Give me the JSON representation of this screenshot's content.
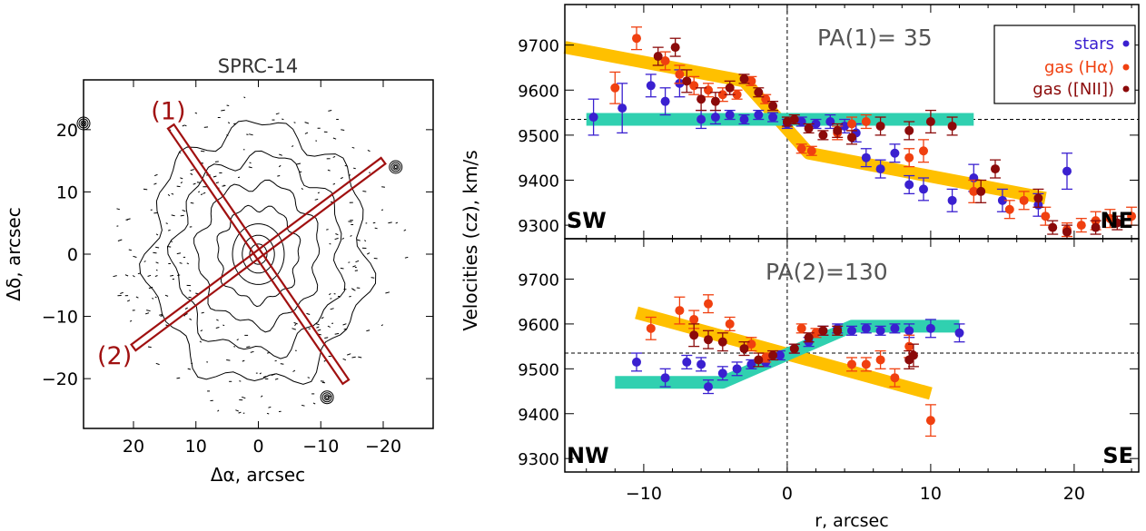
{
  "chart_data": [
    {
      "type": "contour_map",
      "title": "SPRC-14",
      "xlabel": "Δα, arcsec",
      "ylabel": "Δδ, arcsec",
      "xlim": [
        28,
        -28
      ],
      "ylim": [
        -28,
        28
      ],
      "xticks": [
        20,
        10,
        0,
        -10,
        -20
      ],
      "yticks": [
        20,
        10,
        0,
        -10,
        -20
      ],
      "tick_labels_x": [
        "20",
        "10",
        "0",
        "−10",
        "−20"
      ],
      "tick_labels_y": [
        "20",
        "10",
        "0",
        "−10",
        "−20"
      ],
      "slits": [
        {
          "label": "(1)",
          "pa": 35,
          "from": [
            14,
            20.5
          ],
          "to": [
            -14,
            -20.5
          ]
        },
        {
          "label": "(2)",
          "pa": 130,
          "from": [
            20,
            -15
          ],
          "to": [
            -20,
            15
          ]
        }
      ],
      "contour_center": [
        0,
        0
      ],
      "contour_radii": [
        1.5,
        2.8,
        4.5,
        7,
        10.5,
        14.5,
        19
      ],
      "field_sources": [
        [
          28,
          21
        ],
        [
          -22,
          14
        ],
        [
          -11,
          -23
        ]
      ],
      "colors": {
        "slit": "#a01010",
        "contour": "#000000"
      }
    },
    {
      "type": "scatter",
      "panel_label": "PA(1)= 35",
      "xlabel": "r, arcsec",
      "ylabel": "Velocities (cz),  km/s",
      "xlim": [
        -15.5,
        24.5
      ],
      "ylim": [
        9270,
        9790
      ],
      "yticks": [
        9300,
        9400,
        9500,
        9600,
        9700
      ],
      "xticks": [
        -10,
        0,
        10,
        20
      ],
      "tick_labels_y": [
        "9300",
        "9400",
        "9500",
        "9600",
        "9700"
      ],
      "tick_labels_x": [
        "−10",
        "0",
        "10",
        "20"
      ],
      "systemic_velocity": 9535,
      "corner_left": "SW",
      "corner_right": "NE",
      "legend": [
        {
          "label": "stars",
          "color": "#3a20d0"
        },
        {
          "label": "gas (Hα)",
          "color": "#f04010"
        },
        {
          "label": "gas ([NII])",
          "color": "#8b0a0a"
        }
      ],
      "models": [
        {
          "color": "#ffc000",
          "points": [
            [
              -15.5,
              9695
            ],
            [
              -3,
              9620
            ],
            [
              1.5,
              9460
            ],
            [
              18,
              9360
            ]
          ]
        },
        {
          "color": "#30d0b0",
          "points": [
            [
              -14,
              9535
            ],
            [
              13,
              9535
            ]
          ]
        }
      ],
      "series": [
        {
          "name": "stars",
          "color": "#3a20d0",
          "points": [
            [
              -13.5,
              9540,
              40
            ],
            [
              -11.5,
              9560,
              55
            ],
            [
              -9.5,
              9610,
              25
            ],
            [
              -8.5,
              9575,
              30
            ],
            [
              -7.5,
              9615,
              30
            ],
            [
              -6,
              9535,
              20
            ],
            [
              -5,
              9540,
              15
            ],
            [
              -4,
              9545,
              10
            ],
            [
              -3,
              9535,
              10
            ],
            [
              -2,
              9545,
              10
            ],
            [
              -1,
              9540,
              10
            ],
            [
              0,
              9525,
              10
            ],
            [
              1,
              9530,
              10
            ],
            [
              2,
              9525,
              10
            ],
            [
              3,
              9530,
              15
            ],
            [
              4,
              9520,
              15
            ],
            [
              4.8,
              9505,
              20
            ],
            [
              5.5,
              9450,
              20
            ],
            [
              6.5,
              9425,
              20
            ],
            [
              7.5,
              9460,
              20
            ],
            [
              8.5,
              9390,
              20
            ],
            [
              9.5,
              9380,
              25
            ],
            [
              11.5,
              9355,
              25
            ],
            [
              13,
              9405,
              30
            ],
            [
              15,
              9355,
              25
            ],
            [
              17.5,
              9345,
              25
            ],
            [
              19.5,
              9420,
              40
            ]
          ]
        },
        {
          "name": "gas (Hα)",
          "color": "#f04010",
          "points": [
            [
              -12,
              9605,
              35
            ],
            [
              -10.5,
              9715,
              25
            ],
            [
              -8.5,
              9665,
              20
            ],
            [
              -7.5,
              9635,
              20
            ],
            [
              -6.5,
              9610,
              20
            ],
            [
              -5.5,
              9600,
              15
            ],
            [
              -4.5,
              9590,
              15
            ],
            [
              -3.5,
              9590,
              10
            ],
            [
              -2.5,
              9620,
              10
            ],
            [
              -1.5,
              9580,
              10
            ],
            [
              1,
              9470,
              10
            ],
            [
              1.7,
              9465,
              10
            ],
            [
              3.5,
              9505,
              15
            ],
            [
              4.5,
              9525,
              15
            ],
            [
              5.5,
              9530,
              15
            ],
            [
              8.5,
              9450,
              20
            ],
            [
              9.5,
              9465,
              25
            ],
            [
              13,
              9375,
              25
            ],
            [
              15.5,
              9335,
              20
            ],
            [
              16.5,
              9355,
              20
            ],
            [
              18,
              9320,
              20
            ],
            [
              19.5,
              9290,
              15
            ],
            [
              20.5,
              9300,
              15
            ],
            [
              21.5,
              9310,
              20
            ],
            [
              22.5,
              9315,
              20
            ],
            [
              24,
              9320,
              20
            ]
          ]
        },
        {
          "name": "gas ([NII])",
          "color": "#8b0a0a",
          "points": [
            [
              -9,
              9675,
              20
            ],
            [
              -7.8,
              9695,
              20
            ],
            [
              -7,
              9620,
              25
            ],
            [
              -6,
              9580,
              25
            ],
            [
              -5,
              9575,
              20
            ],
            [
              -4,
              9605,
              15
            ],
            [
              -3,
              9625,
              10
            ],
            [
              -2,
              9595,
              10
            ],
            [
              -1,
              9565,
              10
            ],
            [
              0,
              9530,
              10
            ],
            [
              0.5,
              9535,
              10
            ],
            [
              1.5,
              9515,
              10
            ],
            [
              2.5,
              9500,
              10
            ],
            [
              3.5,
              9510,
              15
            ],
            [
              4.5,
              9495,
              15
            ],
            [
              6.5,
              9520,
              20
            ],
            [
              8.5,
              9510,
              20
            ],
            [
              10,
              9530,
              25
            ],
            [
              11.5,
              9520,
              20
            ],
            [
              13.5,
              9375,
              25
            ],
            [
              14.5,
              9425,
              20
            ],
            [
              17.5,
              9360,
              20
            ],
            [
              18.5,
              9295,
              15
            ],
            [
              19.5,
              9285,
              15
            ],
            [
              21.5,
              9295,
              15
            ],
            [
              23,
              9305,
              15
            ]
          ]
        }
      ]
    },
    {
      "type": "scatter",
      "panel_label": "PA(2)=130",
      "xlabel": "r, arcsec",
      "ylabel": "Velocities (cz),  km/s",
      "xlim": [
        -15.5,
        24.5
      ],
      "ylim": [
        9270,
        9790
      ],
      "yticks": [
        9300,
        9400,
        9500,
        9600,
        9700
      ],
      "xticks": [
        -10,
        0,
        10,
        20
      ],
      "tick_labels_y": [
        "9300",
        "9400",
        "9500",
        "9600",
        "9700"
      ],
      "tick_labels_x": [
        "−10",
        "0",
        "10",
        "20"
      ],
      "systemic_velocity": 9535,
      "corner_left": "NW",
      "corner_right": "SE",
      "models": [
        {
          "color": "#ffc000",
          "points": [
            [
              -10.5,
              9625
            ],
            [
              10,
              9445
            ]
          ]
        },
        {
          "color": "#30d0b0",
          "points": [
            [
              -12,
              9470
            ],
            [
              -4.5,
              9470
            ],
            [
              4.5,
              9595
            ],
            [
              12,
              9595
            ]
          ]
        }
      ],
      "series": [
        {
          "name": "stars",
          "color": "#3a20d0",
          "points": [
            [
              -10.5,
              9515,
              20
            ],
            [
              -8.5,
              9480,
              20
            ],
            [
              -7,
              9515,
              15
            ],
            [
              -6,
              9510,
              15
            ],
            [
              -5.5,
              9460,
              15
            ],
            [
              -4.5,
              9490,
              15
            ],
            [
              -3.5,
              9500,
              15
            ],
            [
              -2.5,
              9510,
              10
            ],
            [
              -1.5,
              9515,
              10
            ],
            [
              -0.5,
              9530,
              10
            ],
            [
              0.5,
              9545,
              10
            ],
            [
              1.5,
              9560,
              10
            ],
            [
              2.5,
              9585,
              10
            ],
            [
              3.5,
              9590,
              10
            ],
            [
              4.5,
              9585,
              10
            ],
            [
              5.5,
              9590,
              10
            ],
            [
              6.5,
              9585,
              10
            ],
            [
              7.5,
              9590,
              10
            ],
            [
              8.5,
              9585,
              15
            ],
            [
              10,
              9590,
              20
            ],
            [
              12,
              9580,
              20
            ]
          ]
        },
        {
          "name": "gas (Hα)",
          "color": "#f04010",
          "points": [
            [
              -9.5,
              9590,
              25
            ],
            [
              -7.5,
              9630,
              30
            ],
            [
              -6.5,
              9610,
              20
            ],
            [
              -5.5,
              9645,
              20
            ],
            [
              -4,
              9600,
              15
            ],
            [
              -2.5,
              9555,
              15
            ],
            [
              -1.5,
              9525,
              10
            ],
            [
              1,
              9590,
              10
            ],
            [
              2,
              9580,
              10
            ],
            [
              4.5,
              9510,
              15
            ],
            [
              5.5,
              9510,
              15
            ],
            [
              6.5,
              9520,
              20
            ],
            [
              7.5,
              9480,
              20
            ],
            [
              8.5,
              9550,
              25
            ],
            [
              10,
              9385,
              35
            ]
          ]
        },
        {
          "name": "gas ([NII])",
          "color": "#8b0a0a",
          "points": [
            [
              -6.5,
              9575,
              25
            ],
            [
              -5.5,
              9565,
              20
            ],
            [
              -4.5,
              9560,
              20
            ],
            [
              -3,
              9545,
              15
            ],
            [
              -2,
              9520,
              15
            ],
            [
              -1,
              9530,
              10
            ],
            [
              0.5,
              9545,
              10
            ],
            [
              1.5,
              9570,
              10
            ],
            [
              2.5,
              9585,
              10
            ],
            [
              3.5,
              9585,
              10
            ],
            [
              8.5,
              9520,
              20
            ],
            [
              8.8,
              9530,
              25
            ]
          ]
        }
      ]
    }
  ]
}
